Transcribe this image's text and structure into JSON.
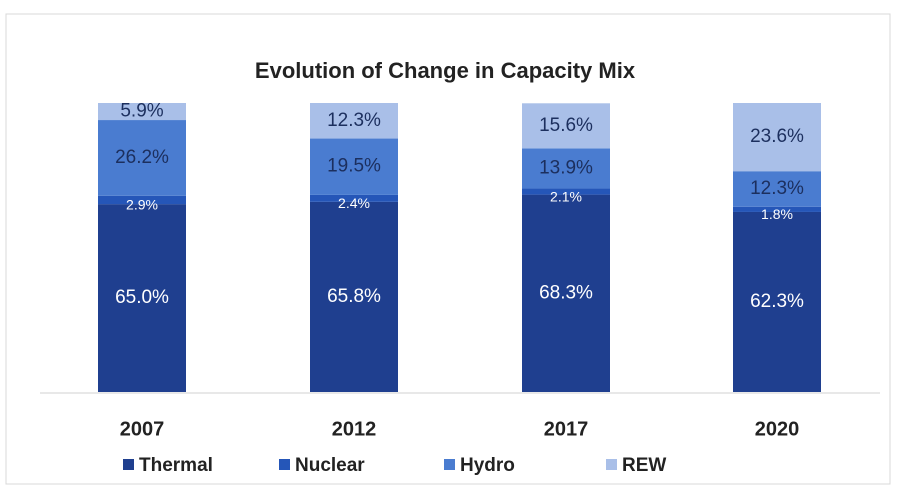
{
  "chart_data": {
    "type": "stacked_bar",
    "title": "Evolution of Change in Capacity Mix",
    "categories": [
      "2007",
      "2012",
      "2017",
      "2020"
    ],
    "ylim": [
      0,
      100
    ],
    "series": [
      {
        "name": "Thermal",
        "color": "#1f3f8f",
        "label_color": "#ffffff",
        "values": [
          65.0,
          65.8,
          68.3,
          62.3
        ],
        "value_labels": [
          "65.0%",
          "65.8%",
          "68.3%",
          "62.3%"
        ]
      },
      {
        "name": "Nuclear",
        "color": "#2556b8",
        "label_color": "#ffffff",
        "values": [
          2.9,
          2.4,
          2.1,
          1.8
        ],
        "value_labels": [
          "2.9%",
          "2.4%",
          "2.1%",
          "1.8%"
        ]
      },
      {
        "name": "Hydro",
        "color": "#4a7cd0",
        "label_color": "#1c2f5e",
        "values": [
          26.2,
          19.5,
          13.9,
          12.3
        ],
        "value_labels": [
          "26.2%",
          "19.5%",
          "13.9%",
          "12.3%"
        ]
      },
      {
        "name": "REW",
        "color": "#a9bfe8",
        "label_color": "#1c2f5e",
        "values": [
          5.9,
          12.3,
          15.6,
          23.6
        ],
        "value_labels": [
          "5.9%",
          "12.3%",
          "15.6%",
          "23.6%"
        ]
      }
    ]
  }
}
